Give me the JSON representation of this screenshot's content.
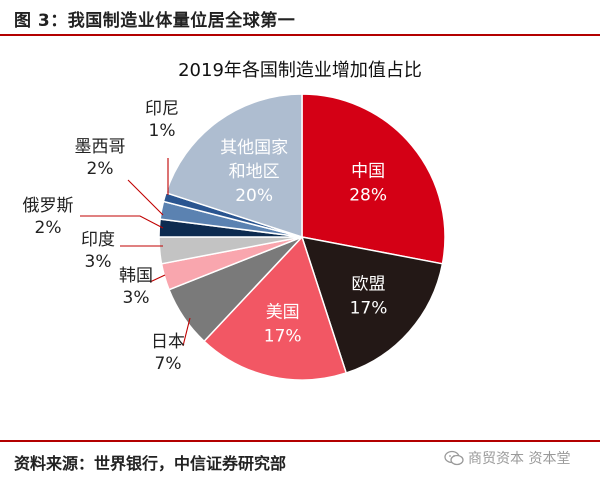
{
  "figure_title": "图 3：我国制造业体量位居全球第一",
  "source": "资料来源：世界银行，中信证券研究部",
  "watermark": "商贸资本 资本堂",
  "chart_data": {
    "type": "pie",
    "title": "2019年各国制造业增加值占比",
    "slices": [
      {
        "name": "中国",
        "value": 28,
        "label": "28%",
        "color": "#d40015"
      },
      {
        "name": "欧盟",
        "value": 17,
        "label": "17%",
        "color": "#231816"
      },
      {
        "name": "美国",
        "value": 17,
        "label": "17%",
        "color": "#f25764"
      },
      {
        "name": "日本",
        "value": 7,
        "label": "7%",
        "color": "#7a7a7a"
      },
      {
        "name": "韩国",
        "value": 3,
        "label": "3%",
        "color": "#f9a6ae"
      },
      {
        "name": "印度",
        "value": 3,
        "label": "3%",
        "color": "#c3c3c3"
      },
      {
        "name": "俄罗斯",
        "value": 2,
        "label": "2%",
        "color": "#0d2b50"
      },
      {
        "name": "墨西哥",
        "value": 2,
        "label": "2%",
        "color": "#5b82b1"
      },
      {
        "name": "印尼",
        "value": 1,
        "label": "1%",
        "color": "#2a5590"
      },
      {
        "name": "其他国家和地区",
        "value": 20,
        "label": "20%",
        "color": "#aebdd0"
      }
    ],
    "label_lines": {
      "其他国家和地区": [
        "其他国家",
        "和地区"
      ]
    }
  }
}
